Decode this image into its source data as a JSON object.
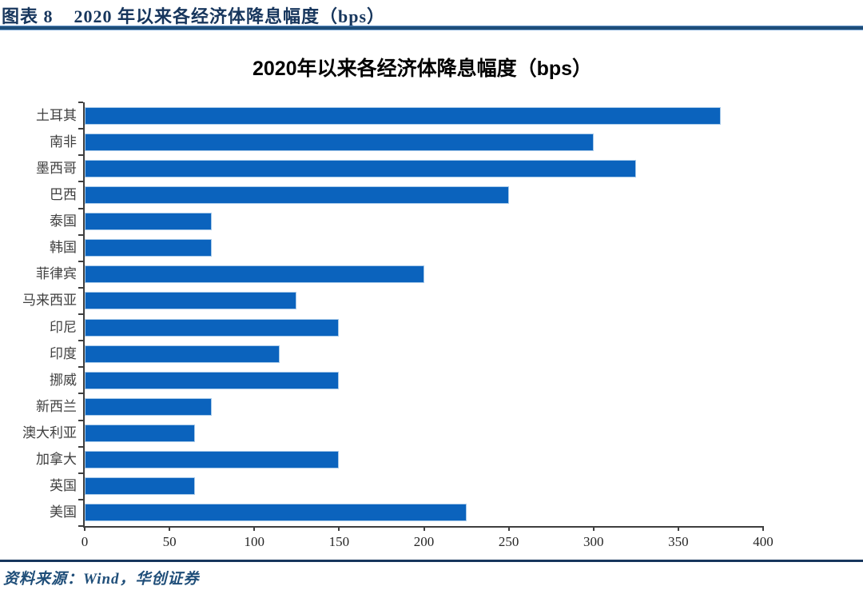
{
  "page": {
    "header": {
      "label": "图表 8",
      "title": "2020 年以来各经济体降息幅度（bps）"
    },
    "source_note": "资料来源：Wind，华创证券",
    "accent_color": "#17365D"
  },
  "chart_data": {
    "type": "bar",
    "orientation": "horizontal",
    "title": "2020年以来各经济体降息幅度（bps）",
    "categories": [
      "土耳其",
      "南非",
      "墨西哥",
      "巴西",
      "泰国",
      "韩国",
      "菲律宾",
      "马来西亚",
      "印尼",
      "印度",
      "挪威",
      "新西兰",
      "澳大利亚",
      "加拿大",
      "英国",
      "美国"
    ],
    "values": [
      375,
      300,
      325,
      250,
      75,
      75,
      200,
      125,
      150,
      115,
      150,
      75,
      65,
      150,
      65,
      225
    ],
    "xlabel": "",
    "ylabel": "",
    "xlim": [
      0,
      400
    ],
    "x_ticks": [
      0,
      50,
      100,
      150,
      200,
      250,
      300,
      350,
      400
    ],
    "grid": false,
    "legend": false,
    "bar_color": "#0B63BD",
    "bar_border_color": "#A9CBEA"
  }
}
